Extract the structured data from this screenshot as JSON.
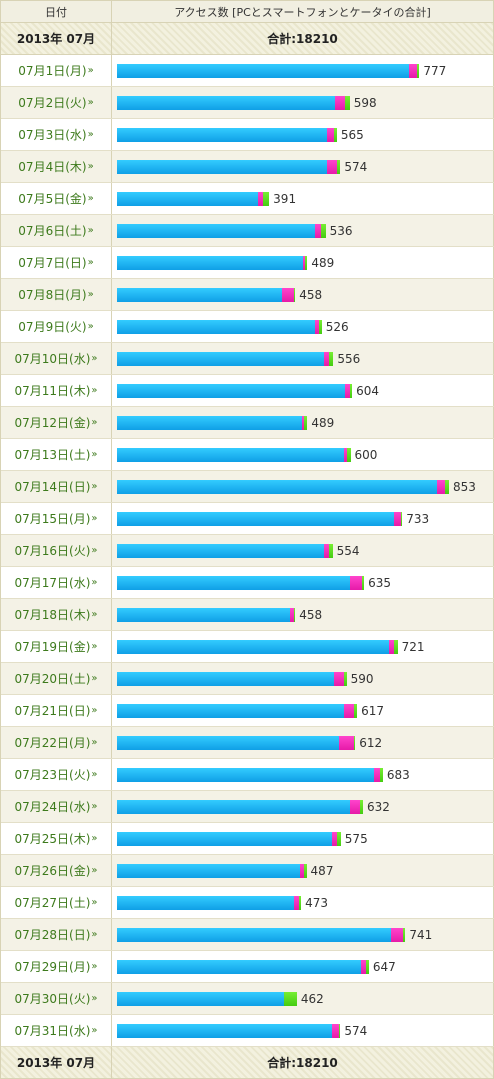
{
  "header": {
    "date_col": "日付",
    "access_col": "アクセス数 [PCとスマートフォンとケータイの合計]"
  },
  "total": {
    "month": "2013年 07月",
    "sum": "合計:18210"
  },
  "colors": {
    "pc": "#1aa8f0",
    "smartphone": "#f01ab4",
    "feature_phone": "#55dd22"
  },
  "chart_data": {
    "type": "bar",
    "orientation": "horizontal",
    "stacked": true,
    "title": "",
    "xlabel": "",
    "ylabel": "",
    "categories": [
      "07月1日(月)",
      "07月2日(火)",
      "07月3日(水)",
      "07月4日(木)",
      "07月5日(金)",
      "07月6日(土)",
      "07月7日(日)",
      "07月8日(月)",
      "07月9日(火)",
      "07月10日(水)",
      "07月11日(木)",
      "07月12日(金)",
      "07月13日(土)",
      "07月14日(日)",
      "07月15日(月)",
      "07月16日(火)",
      "07月17日(水)",
      "07月18日(木)",
      "07月19日(金)",
      "07月20日(土)",
      "07月21日(日)",
      "07月22日(月)",
      "07月23日(火)",
      "07月24日(水)",
      "07月25日(木)",
      "07月26日(金)",
      "07月27日(土)",
      "07月28日(日)",
      "07月29日(月)",
      "07月30日(火)",
      "07月31日(水)"
    ],
    "totals": [
      777,
      598,
      565,
      574,
      391,
      536,
      489,
      458,
      526,
      556,
      604,
      489,
      600,
      853,
      733,
      554,
      635,
      458,
      721,
      590,
      617,
      612,
      683,
      632,
      575,
      487,
      473,
      741,
      647,
      462,
      574
    ],
    "series": [
      {
        "values": [
          750,
          560,
          540,
          540,
          362,
          508,
          479,
          423,
          509,
          532,
          587,
          475,
          583,
          822,
          711,
          531,
          599,
          445,
          700,
          557,
          583,
          571,
          660,
          598,
          553,
          469,
          455,
          703,
          627,
          428,
          552
        ]
      },
      {
        "values": [
          21,
          25,
          17,
          26,
          14,
          17,
          3,
          32,
          11,
          14,
          11,
          6,
          9,
          20,
          18,
          13,
          30,
          9,
          12,
          26,
          26,
          37,
          16,
          27,
          11,
          12,
          13,
          33,
          13,
          0,
          18
        ]
      },
      {
        "values": [
          6,
          13,
          8,
          8,
          15,
          11,
          7,
          3,
          6,
          10,
          6,
          8,
          8,
          11,
          4,
          10,
          6,
          4,
          9,
          7,
          8,
          4,
          7,
          7,
          11,
          6,
          5,
          5,
          7,
          34,
          4
        ]
      }
    ],
    "xlim": [
      0,
      853
    ]
  }
}
